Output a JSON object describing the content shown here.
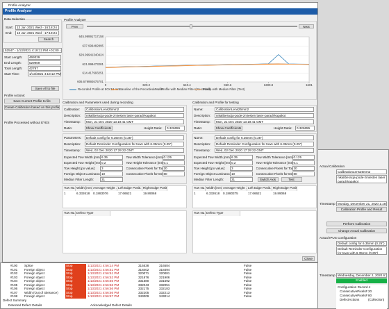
{
  "window": {
    "title": "Profile Analyzer",
    "header": "Profile Analyzer",
    "close": "Close"
  },
  "sidebar": {
    "section": "Data Selection",
    "start_label": "Start:",
    "start_value": "13 Jan 2021 Wed - 16:18:24",
    "end_label": "End:",
    "end_value": "13 Jan 2021 Wed - 17:19:24",
    "search": "Search",
    "selected_record": "52547 - 1/13/2021 4:18:12 PM +01:00 - Lan",
    "fields": [
      {
        "label": "Start Length:",
        "value": "469329"
      },
      {
        "label": "End Length:",
        "value": "529909"
      },
      {
        "label": "Total Length:",
        "value": "42787"
      },
      {
        "label": "Start Time:",
        "value": "1/13/2021 4:18:12 PM +01:00"
      }
    ],
    "save_all": "Save All to file",
    "actions_label": "Profile Actions:",
    "save_current": "Save Current Profile to file",
    "create_calibration": "Create Calibration based on this profile",
    "processed_label": "Profile Processed without Error:",
    "processed_value": "YES"
  },
  "chart_data": {
    "type": "line",
    "title": "Profile Analyzer",
    "prev": "Prev",
    "next": "Next",
    "x": [
      0,
      80,
      160,
      240,
      320,
      400,
      480,
      560,
      640,
      720,
      800,
      880,
      960,
      1040,
      1120,
      1200,
      1280,
      1360,
      1440,
      1520,
      1600
    ],
    "xlim": [
      0,
      1601
    ],
    "xticks": [
      0,
      320.2,
      640.4,
      960.6,
      1280.8,
      1601
    ],
    "ylim": [
      606.679992675701,
      645.99991717158
    ],
    "yticks": [
      606.679992675701,
      614.417993251,
      621.999473281,
      629.99941340424,
      637.999482895,
      645.99991717158
    ],
    "series": [
      {
        "name": "Recorded Profile at 5CK13 mm",
        "color": "#1f77b4",
        "values": [
          619.5,
          619.8,
          620.0,
          620.1,
          620.3,
          620.6,
          620.8,
          621.0,
          621.2,
          621.3,
          621.5,
          621.6,
          621.8,
          622.0,
          622.1,
          622.3,
          622.5,
          630.5,
          622.4,
          622.3,
          622.2
        ]
      },
      {
        "name": "Baseline of the Recorded Profile",
        "color": "#ff7f0e",
        "values": [
          619.1,
          619.4,
          619.6,
          619.8,
          620.0,
          620.2,
          620.4,
          620.6,
          620.8,
          621.0,
          621.1,
          621.3,
          621.5,
          621.6,
          621.8,
          621.9,
          622.0,
          622.1,
          622.1,
          622.0,
          621.9
        ]
      },
      {
        "name": "Profile with Median Filter (Recorded)",
        "color": "#8c8c8c",
        "values": [
          619.4,
          619.7,
          619.9,
          620.0,
          620.2,
          620.5,
          620.7,
          620.9,
          621.1,
          621.2,
          621.4,
          621.5,
          621.7,
          621.9,
          622.0,
          622.2,
          622.4,
          622.6,
          622.3,
          622.2,
          622.1
        ]
      },
      {
        "name": "Profile with Median Filter (Test)",
        "color": "#f4a460",
        "values": [
          619.3,
          619.6,
          619.8,
          619.9,
          620.1,
          620.4,
          620.6,
          620.8,
          621.0,
          621.1,
          621.3,
          621.4,
          621.6,
          621.8,
          621.9,
          622.1,
          622.3,
          622.5,
          622.2,
          622.1,
          622.0
        ]
      }
    ]
  },
  "panels": [
    {
      "title": "Calibration and Parameters used during recording",
      "calibration_fields": [
        {
          "label": "Calibration:",
          "value": "CalibrationLens25mm2"
        },
        {
          "label": "Description:",
          "value": "nikaliberacja-pode-zmiesten laser-paradi-kapakot"
        },
        {
          "label": "Timestamp:",
          "value": "Mon, 21 Dec 2020 13:19:41 GMT"
        }
      ],
      "ratio_label": "Ratio:",
      "coefficients": "Show Coefficients",
      "height_ratio_label": "Height Ratio:",
      "height_ratio": "0.326655",
      "parameter_fields": [
        {
          "label": "Parameters:",
          "value": "Default config for 6.35mm (0.25\")"
        },
        {
          "label": "Description:",
          "value": "Default Reminder Configuration for tows with 6.35mm (0.25\")"
        },
        {
          "label": "Timestamp:",
          "value": "Wed, 02 Dec 2020 17:29:22 GMT"
        }
      ],
      "numeric_fields": [
        {
          "label": "Expected Tow Width [mm]:",
          "value": "6.35"
        },
        {
          "label": "Tow Width Tolerance [mm]:",
          "value": "0.125"
        },
        {
          "label": "Expected Tow Height [mm]:",
          "value": "0.2"
        },
        {
          "label": "Tow Height Tolerance [mm]:",
          "value": "0.1"
        },
        {
          "label": "Tow Height [px value]:",
          "value": "3"
        },
        {
          "label": "Consecutive Pixels for Tow:",
          "value": "20"
        },
        {
          "label": "Foreign Object Luminance:",
          "value": "10"
        },
        {
          "label": "Consecutive Pixels for Defect:",
          "value": "80"
        },
        {
          "label": "Median Filter Length:",
          "value": "31"
        }
      ],
      "result_table": {
        "columns": [
          "Tow Nu...",
          "Width [mm]",
          "Average Height ...",
          "Left Edge Positi...",
          "Right Edge Positi..."
        ],
        "rows": [
          [
            "1",
            "6.332618",
            "0.1883076",
            "17.66621",
            "19.89068"
          ]
        ]
      },
      "defect_table": {
        "columns": [
          "Tow Nu...",
          "Defect Type"
        ]
      }
    },
    {
      "title": "Calibration and Profile for testing",
      "calibration_fields": [
        {
          "label": "Name:",
          "value": "CalibrationLens25mm2"
        },
        {
          "label": "Description:",
          "value": "nikaliberacja-pode-zmiesten laser-paradi-kapakot"
        },
        {
          "label": "Timestamp:",
          "value": "Mon, 21 Dec 2020 13:19:41 GMT"
        }
      ],
      "ratio_label": "Ratio:",
      "coefficients": "Show Coefficients",
      "height_ratio_label": "Height Ratio:",
      "height_ratio": "0.326655",
      "parameter_fields": [
        {
          "label": "Name:",
          "value": "Default config for 6.35mm (0.25\")"
        },
        {
          "label": "Description:",
          "value": "Default Reminder Configuration for tows with 6.35mm (0.25\")"
        },
        {
          "label": "Timestamp:",
          "value": "Wed, 02 Dec 2020 17:29:22 GMT"
        }
      ],
      "numeric_fields": [
        {
          "label": "Expected Tow Width [mm]:",
          "value": "6.35"
        },
        {
          "label": "Tow Width Tolerance [mm]:",
          "value": "0.125"
        },
        {
          "label": "Expected Tow Height [mm]:",
          "value": "0.2"
        },
        {
          "label": "Tow Height Tolerance [mm]:",
          "value": "0.1"
        },
        {
          "label": "Tow Height [px value]:",
          "value": "3"
        },
        {
          "label": "Consecutive Pixels for Tow:",
          "value": "20"
        },
        {
          "label": "Foreign Object Luminance:",
          "value": "10"
        },
        {
          "label": "Consecutive Pixels for Defect:",
          "value": "80"
        },
        {
          "label": "Median Filter Length:",
          "value": "31"
        }
      ],
      "buttons": [
        "Switch Axis",
        "Test"
      ],
      "result_table": {
        "columns": [
          "Tow Nu...",
          "Width [mm]",
          "Average Height ...",
          "Left Edge Positi...",
          "Right Edge Positi..."
        ],
        "rows": [
          [
            "1",
            "6.332618",
            "0.1880375",
            "17.66621",
            "19.89068"
          ]
        ]
      },
      "defect_table": {
        "columns": [
          "Tow Nu...",
          "Defect Type"
        ]
      }
    }
  ],
  "background_window": {
    "calibration_label": "Actual Calibration",
    "calibration_name": "CalibrationLens25mm2",
    "calibration_description": "nikaliberacja-pode-zmiesten laser paradi kapakot",
    "timestamp_label": "Timestamp",
    "calibration_timestamp": "Monday, December 21, 2020 1:19:41 PM",
    "result_button": "Calibration Profile and Result",
    "perform": "Perform Calibration",
    "change": "Change Actual Calibration",
    "config_label": "Actual IPUS Configuration",
    "config_name": "Default config for 6.35mm (0.25\")",
    "config_description": "Default Reminder Configuration for tows with 6.35mm (0.25\")",
    "config_timestamp": "Wednesday, December 2, 2020 6:29:22 PM",
    "enabled": "Enabled",
    "properties_header": "Configuration Record 4",
    "properties": [
      {
        "name": "ConsecutivePixelsForT",
        "value": "20"
      },
      {
        "name": "ConsecutivePixelsForD",
        "value": "80"
      },
      {
        "name": "DefectActions",
        "value": "(Collection)"
      }
    ]
  },
  "defect_log": {
    "rows": [
      [
        "#100",
        "Splice",
        "Stop",
        "1/13/2021 4:56:14 PM",
        "315538",
        "316584",
        "False"
      ],
      [
        "#101",
        "Foreign object",
        "Stop",
        "1/13/2021 4:56:51 PM",
        "318402",
        "318494",
        "False"
      ],
      [
        "#102",
        "Foreign object",
        "Stop",
        "1/13/2021 4:56:51 PM",
        "320071",
        "320081",
        "False"
      ],
      [
        "#103",
        "Foreign object",
        "Stop",
        "1/13/2021 4:56:52 PM",
        "321876",
        "321906",
        "False"
      ],
      [
        "#104",
        "Foreign object",
        "Stop",
        "1/13/2021 4:56:56 PM",
        "331580",
        "331592",
        "False"
      ],
      [
        "#105",
        "Foreign object",
        "Stop",
        "1/13/2021 4:56:56 PM",
        "332043",
        "332051",
        "False"
      ],
      [
        "#106",
        "Foreign object",
        "Stop",
        "1/13/2021 4:56:56 PM",
        "332175",
        "332183",
        "False"
      ],
      [
        "#107",
        "Width (Out of tolerance)",
        "Stop",
        "1/13/2021 4:56:56 PM",
        "332205",
        "332213",
        "False"
      ],
      [
        "#108",
        "Foreign object",
        "Stop",
        "1/13/2021 4:56:57 PM",
        "343009",
        "343014",
        "False"
      ]
    ],
    "summary": "Defect Summary",
    "detected": "Detected Defect Details",
    "acknowledged": "Acknowledged Defect Details"
  }
}
